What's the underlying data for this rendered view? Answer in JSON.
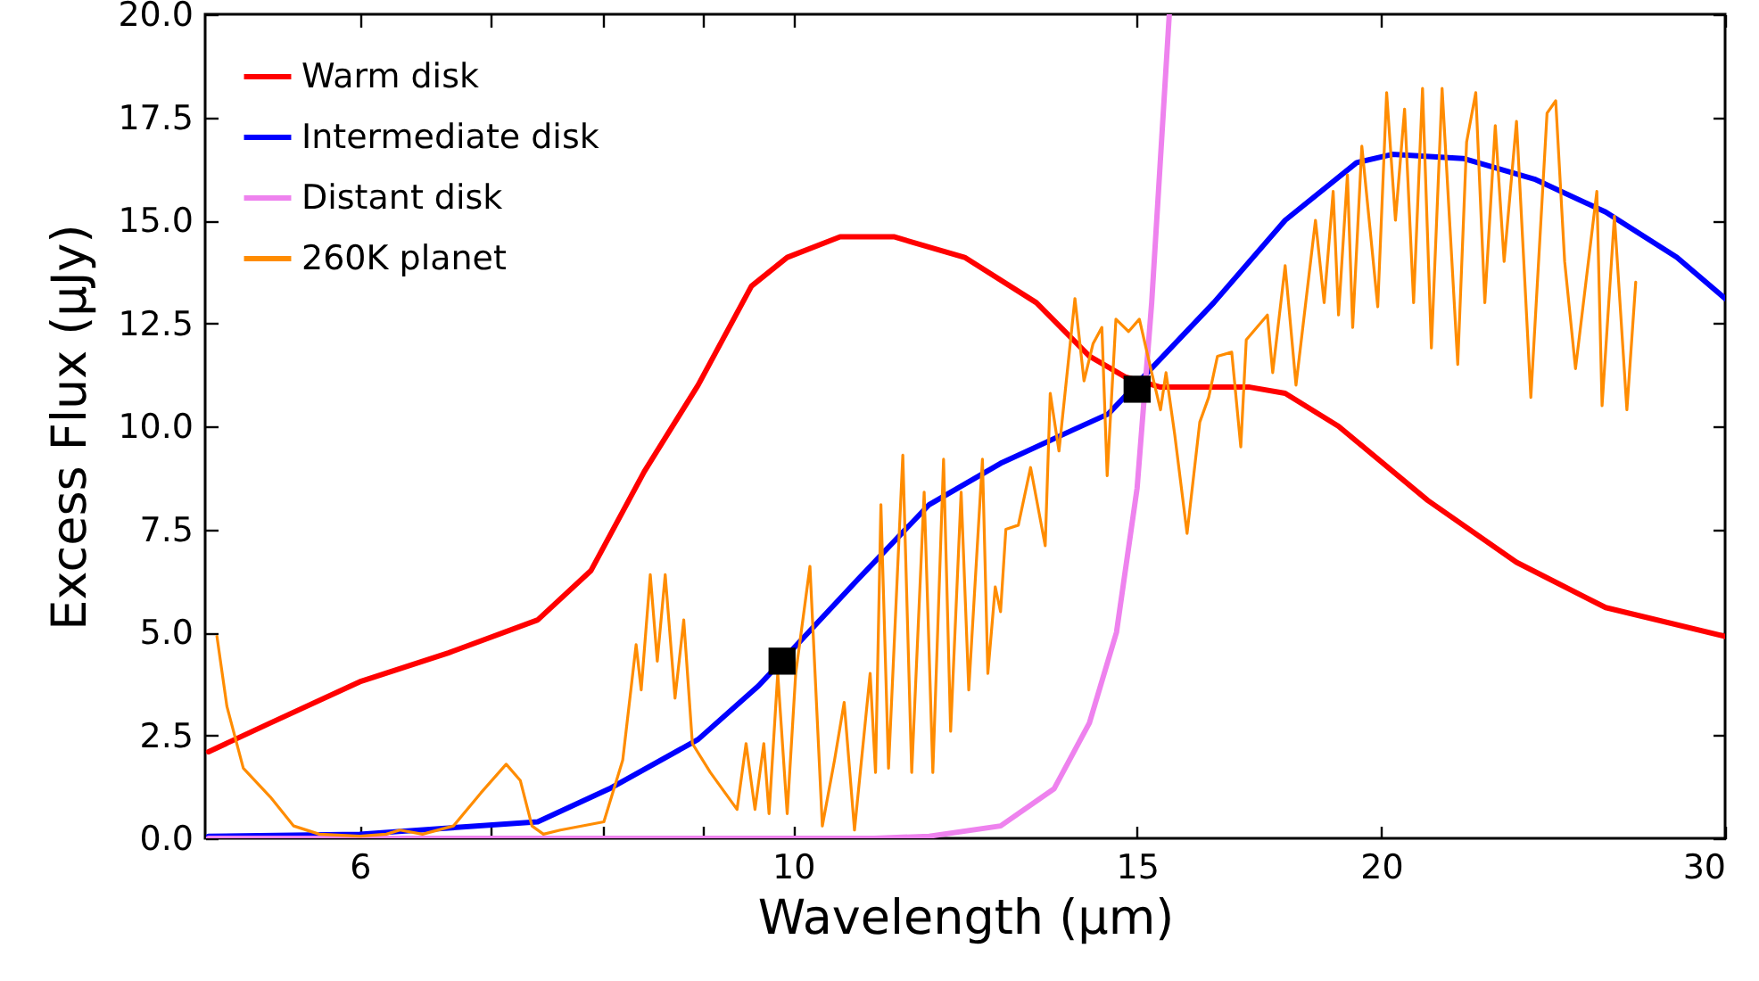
{
  "chart_data": {
    "type": "line",
    "xlabel": "Wavelength (μm)",
    "ylabel": "Excess Flux (μJy)",
    "log": "x",
    "grid": false,
    "legend": "top left",
    "xlim": [
      5,
      30
    ],
    "xticks": [
      6,
      {
        "value": 7,
        "label": null
      },
      {
        "value": 8,
        "label": null
      },
      {
        "value": 9,
        "label": null
      },
      10,
      15,
      20,
      30
    ],
    "ylim": [
      0,
      20
    ],
    "yticks": [
      {
        "value": 0,
        "label": "0.0"
      },
      {
        "value": 2.5,
        "label": "2.5"
      },
      {
        "value": 5,
        "label": "5.0"
      },
      {
        "value": 7.5,
        "label": "7.5"
      },
      {
        "value": 10,
        "label": "10.0"
      },
      {
        "value": 12.5,
        "label": "12.5"
      },
      {
        "value": 15,
        "label": "15.0"
      },
      {
        "value": 17.5,
        "label": "17.5"
      },
      {
        "value": 20,
        "label": "20.0"
      }
    ],
    "series": [
      {
        "name": "Warm disk",
        "color": "#ff0000",
        "type": "line",
        "x": [
          5.02,
          5.4,
          6,
          6.66,
          7.4,
          7.88,
          8.39,
          8.94,
          9.52,
          9.93,
          10.57,
          11.26,
          12.24,
          13.32,
          14.18,
          14.79,
          15.42,
          17.13,
          17.86,
          19.02,
          21.13,
          23.46,
          26.06,
          30
        ],
        "values": [
          2.1,
          2.8,
          3.8,
          4.5,
          5.3,
          6.5,
          8.9,
          11.0,
          13.4,
          14.1,
          14.6,
          14.6,
          14.1,
          13.0,
          11.7,
          11.2,
          10.95,
          10.95,
          10.8,
          10.0,
          8.2,
          6.7,
          5.6,
          4.9
        ]
      },
      {
        "name": "Intermediate disk",
        "color": "#0000ff",
        "type": "line",
        "x": [
          5.02,
          6,
          7.4,
          8.05,
          8.94,
          9.6,
          10.8,
          11.74,
          12.77,
          13.89,
          14.5,
          16.42,
          17.86,
          19.43,
          20.26,
          22.03,
          23.96,
          26.06,
          28.34,
          30
        ],
        "values": [
          0.05,
          0.1,
          0.4,
          1.2,
          2.4,
          3.7,
          6.3,
          8.1,
          9.1,
          9.9,
          10.3,
          13.0,
          15.0,
          16.4,
          16.6,
          16.5,
          16.0,
          15.2,
          14.1,
          13.1
        ]
      },
      {
        "name": "Distant disk",
        "color": "#ee82ee",
        "type": "line",
        "x": [
          5.02,
          8.0,
          11.0,
          11.74,
          12.77,
          13.6,
          14.18,
          14.64,
          15.0,
          15.26,
          15.58
        ],
        "values": [
          0,
          0,
          0,
          0.05,
          0.3,
          1.2,
          2.8,
          5.0,
          8.5,
          13.0,
          20.0
        ]
      },
      {
        "name": "260K planet",
        "color": "#ff8c00",
        "type": "line",
        "x": [
          5.07,
          5.13,
          5.23,
          5.4,
          5.55,
          5.72,
          6.0,
          6.19,
          6.29,
          6.46,
          6.7,
          6.92,
          7.13,
          7.25,
          7.35,
          7.45,
          7.6,
          8.0,
          8.18,
          8.31,
          8.36,
          8.45,
          8.52,
          8.6,
          8.7,
          8.79,
          8.88,
          9.07,
          9.36,
          9.46,
          9.56,
          9.66,
          9.72,
          9.82,
          9.93,
          10.03,
          10.2,
          10.35,
          10.5,
          10.62,
          10.75,
          10.95,
          11.02,
          11.09,
          11.19,
          11.38,
          11.5,
          11.67,
          11.79,
          11.94,
          12.04,
          12.19,
          12.3,
          12.5,
          12.58,
          12.69,
          12.77,
          12.85,
          13.04,
          13.23,
          13.46,
          13.54,
          13.68,
          13.94,
          14.09,
          14.24,
          14.39,
          14.48,
          14.63,
          14.85,
          15.04,
          15.26,
          15.42,
          15.52,
          15.68,
          15.91,
          16.15,
          16.32,
          16.49,
          16.77,
          16.95,
          17.06,
          17.49,
          17.6,
          17.86,
          18.09,
          18.51,
          18.7,
          18.9,
          19.02,
          19.22,
          19.34,
          19.55,
          19.92,
          20.13,
          20.34,
          20.56,
          20.78,
          21.0,
          21.22,
          21.49,
          21.89,
          22.12,
          22.36,
          22.6,
          22.88,
          23.12,
          23.46,
          23.86,
          24.32,
          24.57,
          24.83,
          25.15,
          25.79,
          25.95,
          26.33,
          26.72,
          27.0
        ],
        "values": [
          4.9,
          3.2,
          1.7,
          1.0,
          0.3,
          0.1,
          0.05,
          0.1,
          0.2,
          0.1,
          0.3,
          1.1,
          1.8,
          1.4,
          0.3,
          0.1,
          0.2,
          0.4,
          1.9,
          4.7,
          3.6,
          6.4,
          4.3,
          6.4,
          3.4,
          5.3,
          2.3,
          1.6,
          0.7,
          2.3,
          0.7,
          2.3,
          0.6,
          4.0,
          0.6,
          4.0,
          6.6,
          0.3,
          1.9,
          3.3,
          0.2,
          4.0,
          1.6,
          8.1,
          1.7,
          9.3,
          1.6,
          8.4,
          1.6,
          9.2,
          2.6,
          8.4,
          3.6,
          9.2,
          4.0,
          6.1,
          5.5,
          7.5,
          7.6,
          9.0,
          7.1,
          10.8,
          9.4,
          13.1,
          11.1,
          12.0,
          12.4,
          8.8,
          12.6,
          12.3,
          12.6,
          11.3,
          10.4,
          11.3,
          9.8,
          7.4,
          10.1,
          10.7,
          11.7,
          11.8,
          9.5,
          12.1,
          12.7,
          11.3,
          13.9,
          11.0,
          15.0,
          13.0,
          15.7,
          12.7,
          16.1,
          12.4,
          16.8,
          12.9,
          18.1,
          15.0,
          17.7,
          13.0,
          18.2,
          11.9,
          18.2,
          11.5,
          16.9,
          18.1,
          13.0,
          17.3,
          14.0,
          17.4,
          10.7,
          17.6,
          17.9,
          14.0,
          11.4,
          15.7,
          10.5,
          15.1,
          10.4,
          13.5
        ]
      },
      {
        "color": "#000000",
        "type": "scatter",
        "marker": "square",
        "x": [
          9.87,
          15.0
        ],
        "values": [
          4.3,
          10.9
        ]
      }
    ]
  }
}
